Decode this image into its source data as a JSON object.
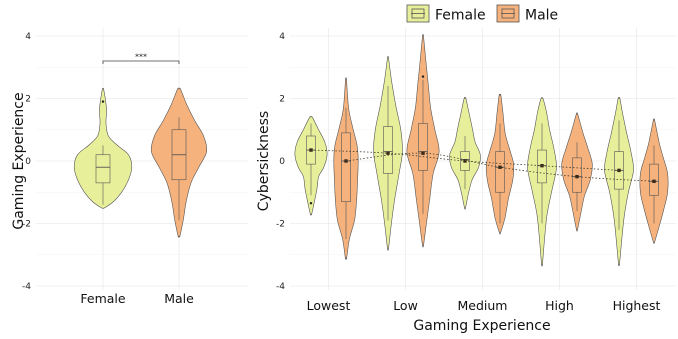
{
  "colors": {
    "female": "#e8ef9a",
    "male": "#f6b27d",
    "stroke": "#555555",
    "grid": "#ebebeb",
    "trend": "#3a3a2a"
  },
  "legend": {
    "items": [
      {
        "label": "Female",
        "color": "#e8ef9a"
      },
      {
        "label": "Male",
        "color": "#f6b27d"
      }
    ],
    "placement": "top-right"
  },
  "chart_data": [
    {
      "type": "violin",
      "title": "",
      "xlabel": "",
      "ylabel": "Gaming Experience",
      "ylim": [
        -4.3,
        4.3
      ],
      "yticks": [
        -4,
        -2,
        0,
        2,
        4
      ],
      "categories": [
        "Female",
        "Male"
      ],
      "grid": true,
      "significance": {
        "from": "Female",
        "to": "Male",
        "y": 3.2,
        "label": "***"
      },
      "series": [
        {
          "name": "Female",
          "color": "#e8ef9a",
          "violin": [
            [
              -1.5,
              0.05
            ],
            [
              -1.3,
              0.35
            ],
            [
              -1.0,
              0.62
            ],
            [
              -0.6,
              0.85
            ],
            [
              -0.2,
              0.96
            ],
            [
              0.2,
              0.85
            ],
            [
              0.5,
              0.48
            ],
            [
              0.8,
              0.18
            ],
            [
              1.2,
              0.1
            ],
            [
              1.6,
              0.12
            ],
            [
              1.9,
              0.09
            ],
            [
              2.3,
              0.02
            ]
          ],
          "box": {
            "q1": -0.7,
            "median": -0.2,
            "q3": 0.2,
            "whisker_low": -1.4,
            "whisker_high": 0.5
          },
          "outliers": [
            1.9
          ]
        },
        {
          "name": "Male",
          "color": "#f6b27d",
          "violin": [
            [
              -2.4,
              0.03
            ],
            [
              -1.9,
              0.14
            ],
            [
              -1.3,
              0.24
            ],
            [
              -0.7,
              0.4
            ],
            [
              -0.2,
              0.66
            ],
            [
              0.3,
              0.92
            ],
            [
              0.8,
              0.82
            ],
            [
              1.3,
              0.52
            ],
            [
              1.8,
              0.26
            ],
            [
              2.3,
              0.05
            ]
          ],
          "box": {
            "q1": -0.6,
            "median": 0.2,
            "q3": 1.0,
            "whisker_low": -1.9,
            "whisker_high": 1.4
          },
          "outliers": []
        }
      ]
    },
    {
      "type": "violin",
      "title": "",
      "xlabel": "Gaming Experience",
      "ylabel": "Cybersickness",
      "ylim": [
        -4.3,
        4.3
      ],
      "yticks": [
        -4,
        -2,
        0,
        2,
        4
      ],
      "categories": [
        "Lowest",
        "Low",
        "Medium",
        "High",
        "Highest"
      ],
      "grid": true,
      "trend_line": "dotted",
      "series": [
        {
          "name": "Female",
          "color": "#e8ef9a",
          "groups": [
            {
              "category": "Lowest",
              "mean": 0.35,
              "violin": [
                [
                  -1.7,
                  0.04
                ],
                [
                  -1.3,
                  0.2
                ],
                [
                  -0.9,
                  0.35
                ],
                [
                  -0.5,
                  0.45
                ],
                [
                  -0.2,
                  0.75
                ],
                [
                  0.2,
                  0.95
                ],
                [
                  0.6,
                  0.82
                ],
                [
                  1.0,
                  0.45
                ],
                [
                  1.4,
                  0.08
                ]
              ],
              "box": {
                "q1": -0.1,
                "median": 0.35,
                "q3": 0.8,
                "whisker_low": -1.1,
                "whisker_high": 1.2
              },
              "outliers": [
                -1.35
              ]
            },
            {
              "category": "Low",
              "mean": 0.25,
              "violin": [
                [
                  -2.8,
                  0.03
                ],
                [
                  -2.0,
                  0.2
                ],
                [
                  -1.2,
                  0.4
                ],
                [
                  -0.4,
                  0.65
                ],
                [
                  0.3,
                  0.85
                ],
                [
                  1.0,
                  0.75
                ],
                [
                  1.8,
                  0.45
                ],
                [
                  2.6,
                  0.2
                ],
                [
                  3.3,
                  0.03
                ]
              ],
              "box": {
                "q1": -0.4,
                "median": 0.3,
                "q3": 1.1,
                "whisker_low": -1.9,
                "whisker_high": 2.4
              },
              "outliers": []
            },
            {
              "category": "Medium",
              "mean": 0.0,
              "violin": [
                [
                  -1.5,
                  0.03
                ],
                [
                  -1.0,
                  0.22
                ],
                [
                  -0.6,
                  0.42
                ],
                [
                  -0.2,
                  0.8
                ],
                [
                  0.2,
                  0.9
                ],
                [
                  0.6,
                  0.6
                ],
                [
                  1.0,
                  0.45
                ],
                [
                  1.5,
                  0.25
                ],
                [
                  2.0,
                  0.05
                ]
              ],
              "box": {
                "q1": -0.3,
                "median": 0.05,
                "q3": 0.3,
                "whisker_low": -0.9,
                "whisker_high": 0.8
              },
              "outliers": []
            },
            {
              "category": "High",
              "mean": -0.15,
              "violin": [
                [
                  -3.3,
                  0.03
                ],
                [
                  -2.5,
                  0.15
                ],
                [
                  -1.7,
                  0.3
                ],
                [
                  -0.9,
                  0.6
                ],
                [
                  -0.2,
                  0.85
                ],
                [
                  0.4,
                  0.7
                ],
                [
                  1.0,
                  0.45
                ],
                [
                  1.6,
                  0.25
                ],
                [
                  2.0,
                  0.06
                ]
              ],
              "box": {
                "q1": -0.7,
                "median": -0.15,
                "q3": 0.35,
                "whisker_low": -2.0,
                "whisker_high": 1.2
              },
              "outliers": []
            },
            {
              "category": "Highest",
              "mean": -0.3,
              "violin": [
                [
                  -3.3,
                  0.03
                ],
                [
                  -2.6,
                  0.15
                ],
                [
                  -1.8,
                  0.3
                ],
                [
                  -1.0,
                  0.55
                ],
                [
                  -0.3,
                  0.85
                ],
                [
                  0.3,
                  0.7
                ],
                [
                  0.9,
                  0.45
                ],
                [
                  1.5,
                  0.22
                ],
                [
                  2.0,
                  0.05
                ]
              ],
              "box": {
                "q1": -0.9,
                "median": -0.3,
                "q3": 0.3,
                "whisker_low": -2.2,
                "whisker_high": 1.3
              },
              "outliers": []
            }
          ]
        },
        {
          "name": "Male",
          "color": "#f6b27d",
          "groups": [
            {
              "category": "Lowest",
              "mean": 0.0,
              "violin": [
                [
                  -3.1,
                  0.04
                ],
                [
                  -2.5,
                  0.2
                ],
                [
                  -1.9,
                  0.5
                ],
                [
                  -1.3,
                  0.62
                ],
                [
                  -0.6,
                  0.68
                ],
                [
                  0.0,
                  0.72
                ],
                [
                  0.5,
                  0.65
                ],
                [
                  1.1,
                  0.38
                ],
                [
                  1.7,
                  0.15
                ],
                [
                  2.6,
                  0.03
                ]
              ],
              "box": {
                "q1": -1.3,
                "median": 0.0,
                "q3": 0.9,
                "whisker_low": -2.5,
                "whisker_high": 1.7
              },
              "outliers": []
            },
            {
              "category": "Low",
              "mean": 0.25,
              "violin": [
                [
                  -2.7,
                  0.03
                ],
                [
                  -2.0,
                  0.2
                ],
                [
                  -1.2,
                  0.4
                ],
                [
                  -0.4,
                  0.6
                ],
                [
                  0.3,
                  0.95
                ],
                [
                  1.0,
                  0.7
                ],
                [
                  1.7,
                  0.45
                ],
                [
                  2.5,
                  0.3
                ],
                [
                  3.3,
                  0.15
                ],
                [
                  4.0,
                  0.03
                ]
              ],
              "box": {
                "q1": -0.3,
                "median": 0.3,
                "q3": 1.2,
                "whisker_low": -1.7,
                "whisker_high": 2.6
              },
              "outliers": [
                2.7
              ]
            },
            {
              "category": "Medium",
              "mean": -0.2,
              "violin": [
                [
                  -2.3,
                  0.03
                ],
                [
                  -1.8,
                  0.3
                ],
                [
                  -1.2,
                  0.5
                ],
                [
                  -0.6,
                  0.75
                ],
                [
                  -0.1,
                  0.8
                ],
                [
                  0.4,
                  0.55
                ],
                [
                  0.9,
                  0.3
                ],
                [
                  1.5,
                  0.18
                ],
                [
                  2.1,
                  0.05
                ]
              ],
              "box": {
                "q1": -1.0,
                "median": -0.2,
                "q3": 0.3,
                "whisker_low": -2.0,
                "whisker_high": 1.2
              },
              "outliers": []
            },
            {
              "category": "High",
              "mean": -0.5,
              "violin": [
                [
                  -2.2,
                  0.03
                ],
                [
                  -1.6,
                  0.25
                ],
                [
                  -1.1,
                  0.45
                ],
                [
                  -0.6,
                  0.78
                ],
                [
                  -0.1,
                  0.9
                ],
                [
                  0.4,
                  0.65
                ],
                [
                  0.9,
                  0.35
                ],
                [
                  1.5,
                  0.04
                ]
              ],
              "box": {
                "q1": -1.0,
                "median": -0.5,
                "q3": 0.1,
                "whisker_low": -1.6,
                "whisker_high": 0.6
              },
              "outliers": []
            },
            {
              "category": "Highest",
              "mean": -0.65,
              "violin": [
                [
                  -2.6,
                  0.03
                ],
                [
                  -2.1,
                  0.3
                ],
                [
                  -1.6,
                  0.55
                ],
                [
                  -1.0,
                  0.8
                ],
                [
                  -0.4,
                  0.8
                ],
                [
                  0.1,
                  0.55
                ],
                [
                  0.6,
                  0.3
                ],
                [
                  1.3,
                  0.04
                ]
              ],
              "box": {
                "q1": -1.1,
                "median": -0.65,
                "q3": -0.1,
                "whisker_low": -2.0,
                "whisker_high": 0.5
              },
              "outliers": []
            }
          ]
        }
      ]
    }
  ]
}
